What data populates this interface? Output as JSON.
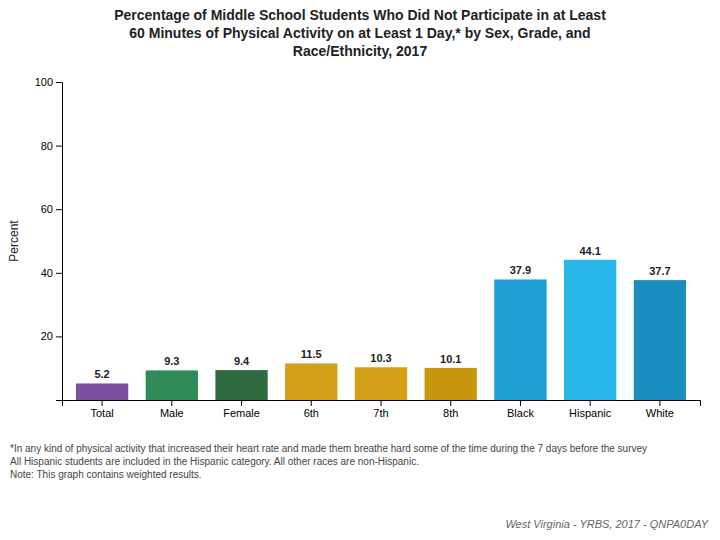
{
  "chart_data": {
    "type": "bar",
    "title": "Percentage of Middle School Students Who Did Not Participate in at Least\n60 Minutes of Physical Activity on at Least 1 Day,* by Sex, Grade, and\nRace/Ethnicity, 2017",
    "ylabel": "Percent",
    "categories": [
      "Total",
      "Male",
      "Female",
      "6th",
      "7th",
      "8th",
      "Black",
      "Hispanic",
      "White"
    ],
    "values": [
      5.2,
      9.3,
      9.4,
      11.5,
      10.3,
      10.1,
      37.9,
      44.1,
      37.7
    ],
    "colors": [
      "#7b4f9e",
      "#2e8b57",
      "#2e6b3e",
      "#d4a017",
      "#d4a017",
      "#c8960c",
      "#1e9fd4",
      "#29b6e8",
      "#1a8fbf"
    ],
    "ylim": [
      0,
      100
    ],
    "yticks": [
      20,
      40,
      60,
      80,
      100
    ],
    "grid": false,
    "data_labels": true,
    "annotations": [
      "*In any kind of physical activity that increased their heart rate and made them breathe hard some of the time during the 7 days before the survey\nAll Hispanic students are included in the Hispanic category.  All other races are non-Hispanic.\nNote: This graph contains weighted results.",
      "West Virginia - YRBS, 2017 - QNPA0DAY"
    ]
  }
}
